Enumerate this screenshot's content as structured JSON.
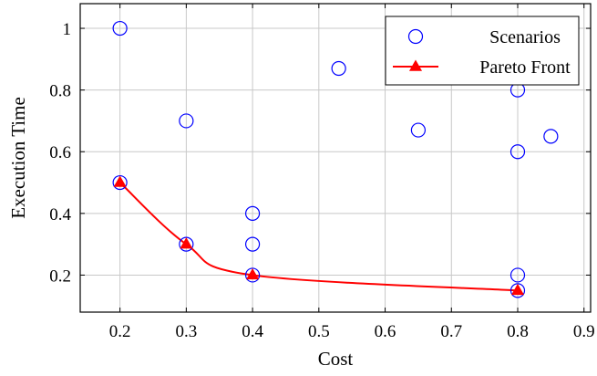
{
  "chart_data": {
    "type": "scatter",
    "title": "",
    "xlabel": "Cost",
    "ylabel": "Execution Time",
    "xlim": [
      0.14,
      0.91
    ],
    "ylim": [
      0.08,
      1.08
    ],
    "x_ticks": [
      0.2,
      0.3,
      0.4,
      0.5,
      0.6,
      0.7,
      0.8,
      0.9
    ],
    "y_ticks": [
      0.2,
      0.4,
      0.6,
      0.8,
      1.0
    ],
    "x_tick_labels": [
      "0.2",
      "0.3",
      "0.4",
      "0.5",
      "0.6",
      "0.7",
      "0.8",
      "0.9"
    ],
    "y_tick_labels": [
      "0.2",
      "0.4",
      "0.6",
      "0.8",
      "1"
    ],
    "grid": true,
    "legend_position": "top-right",
    "series": [
      {
        "name": "Scenarios",
        "kind": "scatter",
        "marker": "open-circle",
        "color": "#0000ff",
        "points": [
          {
            "x": 0.2,
            "y": 1.0
          },
          {
            "x": 0.2,
            "y": 0.5
          },
          {
            "x": 0.3,
            "y": 0.7
          },
          {
            "x": 0.3,
            "y": 0.3
          },
          {
            "x": 0.4,
            "y": 0.4
          },
          {
            "x": 0.4,
            "y": 0.3
          },
          {
            "x": 0.4,
            "y": 0.2
          },
          {
            "x": 0.53,
            "y": 0.87
          },
          {
            "x": 0.65,
            "y": 0.67
          },
          {
            "x": 0.8,
            "y": 0.8
          },
          {
            "x": 0.8,
            "y": 0.6
          },
          {
            "x": 0.8,
            "y": 0.2
          },
          {
            "x": 0.8,
            "y": 0.15
          },
          {
            "x": 0.85,
            "y": 0.65
          }
        ]
      },
      {
        "name": "Pareto Front",
        "kind": "line",
        "marker": "filled-triangle",
        "smooth": true,
        "color": "#ff0000",
        "points": [
          {
            "x": 0.2,
            "y": 0.5
          },
          {
            "x": 0.3,
            "y": 0.3
          },
          {
            "x": 0.4,
            "y": 0.2
          },
          {
            "x": 0.8,
            "y": 0.15
          }
        ]
      }
    ]
  }
}
